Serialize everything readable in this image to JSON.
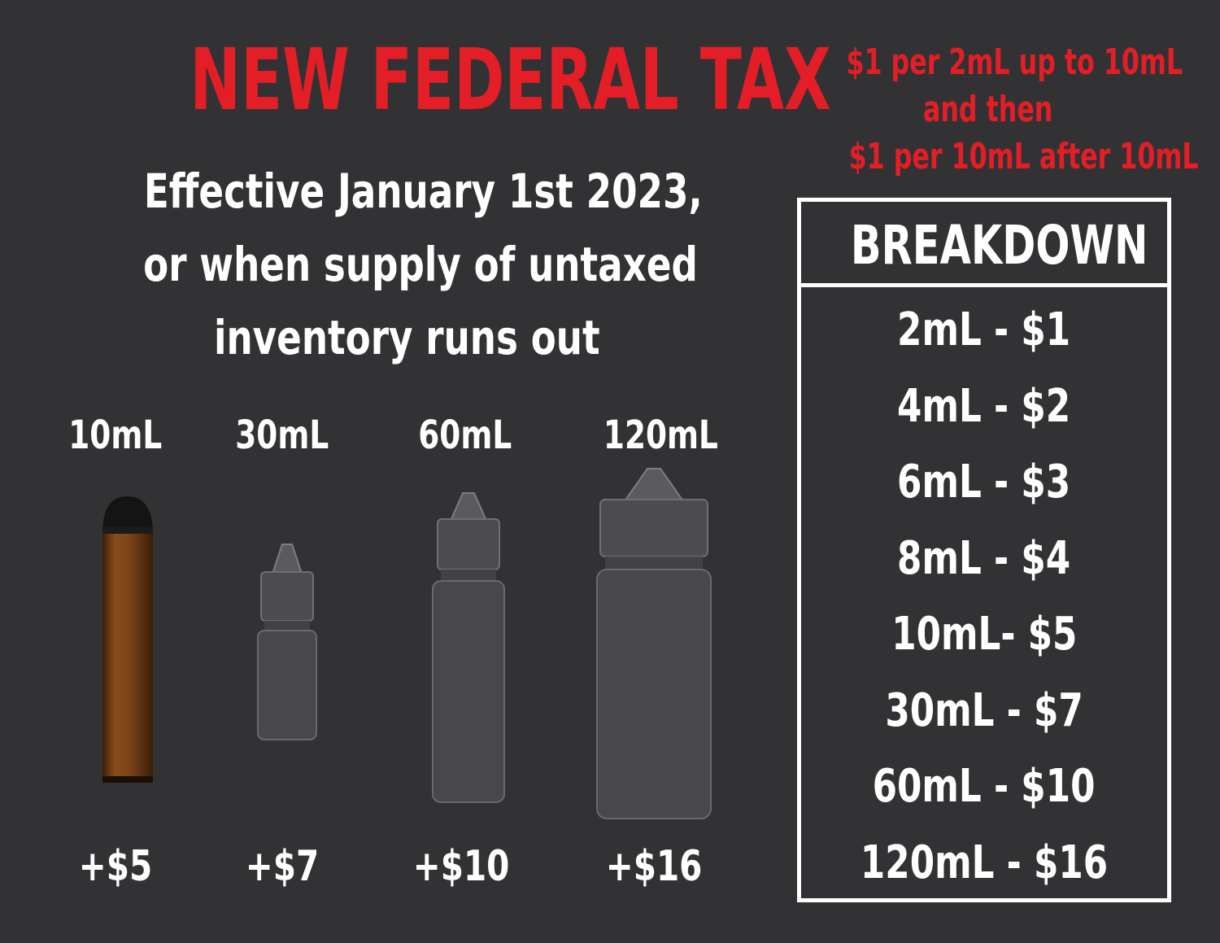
{
  "title": "NEW FEDERAL TAX",
  "subtitle": {
    "lines": [
      "Effective January 1st 2023,",
      "or when supply of untaxed",
      "inventory runs out"
    ]
  },
  "rate_note": {
    "lines": [
      "$1 per 2mL up to 10mL",
      "and then",
      "$1 per 10mL after 10mL"
    ]
  },
  "breakdown": {
    "heading": "BREAKDOWN",
    "rows": [
      "2mL - $1",
      "4mL - $2",
      "6mL - $3",
      "8mL - $4",
      "10mL- $5",
      "30mL - $7",
      "60mL - $10",
      "120mL - $16"
    ]
  },
  "products": [
    {
      "label": "10mL",
      "price": "+$5",
      "icon": "disposable-vape-icon"
    },
    {
      "label": "30mL",
      "price": "+$7",
      "icon": "bottle-icon"
    },
    {
      "label": "60mL",
      "price": "+$10",
      "icon": "bottle-icon"
    },
    {
      "label": "120mL",
      "price": "+$16",
      "icon": "bottle-icon"
    }
  ],
  "colors": {
    "background": "#323234",
    "accent_red": "#e31e26",
    "text": "#ffffff",
    "vape_body": "#7a4318"
  }
}
